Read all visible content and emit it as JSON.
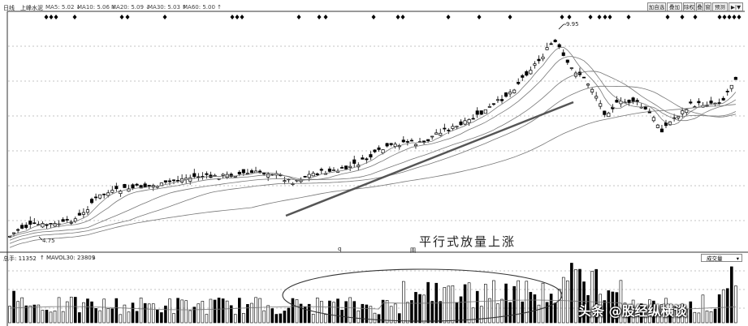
{
  "header": {
    "period": "日线",
    "stock_name": "上峰水泥",
    "ma_items": [
      {
        "label": "MA5: 5.02",
        "arrow": "↓",
        "color": "#444444"
      },
      {
        "label": "MA10: 5.06",
        "arrow": "↓",
        "color": "#444444"
      },
      {
        "label": "MA20: 5.09",
        "arrow": "↓",
        "color": "#444444"
      },
      {
        "label": "MA30: 5.03",
        "arrow": "↑",
        "color": "#444444"
      },
      {
        "label": "MA60: 5.00",
        "arrow": "↑",
        "color": "#444444"
      }
    ]
  },
  "toolbar": {
    "buttons": [
      "加自选",
      "叠加",
      "除权",
      "叠",
      "窗",
      "预测",
      "▶|▼"
    ]
  },
  "price_annotations": {
    "high_label": "9.95",
    "low_label": "4.75"
  },
  "main_annotation": "平行式放量上涨",
  "small_marks": {
    "q": "q",
    "box": "圆"
  },
  "volume_header": {
    "label": "总手: 11352",
    "arrow1": "↑",
    "mavol_label": "MAVOL30: 23809",
    "arrow2": "↓"
  },
  "volume_selector": "成交量",
  "watermark": "头条 @股经纵横谈",
  "colors": {
    "up_candle": "#000000",
    "down_candle": "#000000",
    "trendline": "#555555",
    "grid": "#b0b0b0",
    "ma_lines": "#777777"
  }
}
